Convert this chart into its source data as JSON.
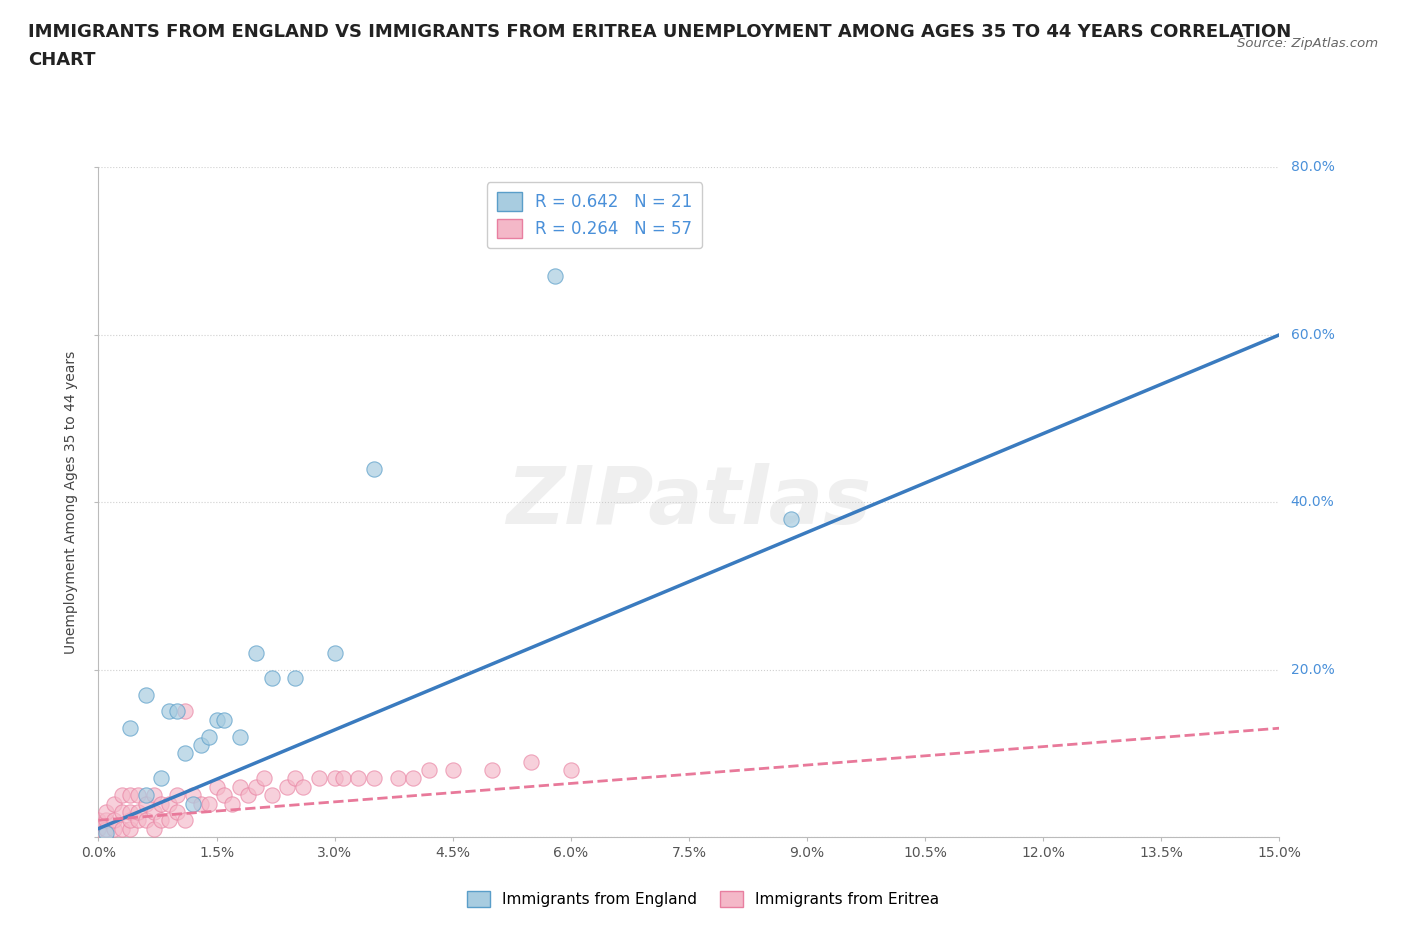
{
  "title": "IMMIGRANTS FROM ENGLAND VS IMMIGRANTS FROM ERITREA UNEMPLOYMENT AMONG AGES 35 TO 44 YEARS CORRELATION\nCHART",
  "source": "Source: ZipAtlas.com",
  "ylabel": "Unemployment Among Ages 35 to 44 years",
  "xlim": [
    0.0,
    0.15
  ],
  "ylim": [
    0.0,
    0.8
  ],
  "xticks": [
    0.0,
    0.015,
    0.03,
    0.045,
    0.06,
    0.075,
    0.09,
    0.105,
    0.12,
    0.135,
    0.15
  ],
  "yticks": [
    0.0,
    0.2,
    0.4,
    0.6,
    0.8
  ],
  "england_color": "#a8cce0",
  "eritrea_color": "#f4b8c8",
  "england_edge_color": "#5a9ec9",
  "eritrea_edge_color": "#e87fa0",
  "england_trend_color": "#3a7bbf",
  "eritrea_trend_color": "#e8799a",
  "england_R": 0.642,
  "england_N": 21,
  "eritrea_R": 0.264,
  "eritrea_N": 57,
  "england_x": [
    0.001,
    0.004,
    0.006,
    0.006,
    0.008,
    0.009,
    0.01,
    0.011,
    0.012,
    0.013,
    0.014,
    0.015,
    0.016,
    0.018,
    0.02,
    0.022,
    0.025,
    0.03,
    0.035,
    0.058,
    0.088
  ],
  "england_y": [
    0.005,
    0.13,
    0.17,
    0.05,
    0.07,
    0.15,
    0.15,
    0.1,
    0.04,
    0.11,
    0.12,
    0.14,
    0.14,
    0.12,
    0.22,
    0.19,
    0.19,
    0.22,
    0.44,
    0.67,
    0.38
  ],
  "eritrea_x": [
    0.0,
    0.0,
    0.001,
    0.001,
    0.001,
    0.002,
    0.002,
    0.002,
    0.003,
    0.003,
    0.003,
    0.004,
    0.004,
    0.004,
    0.004,
    0.005,
    0.005,
    0.005,
    0.006,
    0.006,
    0.007,
    0.007,
    0.007,
    0.008,
    0.008,
    0.009,
    0.009,
    0.01,
    0.01,
    0.011,
    0.011,
    0.012,
    0.013,
    0.014,
    0.015,
    0.016,
    0.017,
    0.018,
    0.019,
    0.02,
    0.021,
    0.022,
    0.024,
    0.025,
    0.026,
    0.028,
    0.03,
    0.031,
    0.033,
    0.035,
    0.038,
    0.04,
    0.042,
    0.045,
    0.05,
    0.055,
    0.06
  ],
  "eritrea_y": [
    0.01,
    0.02,
    0.01,
    0.02,
    0.03,
    0.01,
    0.02,
    0.04,
    0.01,
    0.03,
    0.05,
    0.01,
    0.02,
    0.03,
    0.05,
    0.02,
    0.03,
    0.05,
    0.02,
    0.04,
    0.01,
    0.03,
    0.05,
    0.02,
    0.04,
    0.02,
    0.04,
    0.03,
    0.05,
    0.02,
    0.15,
    0.05,
    0.04,
    0.04,
    0.06,
    0.05,
    0.04,
    0.06,
    0.05,
    0.06,
    0.07,
    0.05,
    0.06,
    0.07,
    0.06,
    0.07,
    0.07,
    0.07,
    0.07,
    0.07,
    0.07,
    0.07,
    0.08,
    0.08,
    0.08,
    0.09,
    0.08
  ],
  "england_trend_x": [
    0.0,
    0.15
  ],
  "england_trend_y": [
    0.01,
    0.6
  ],
  "eritrea_trend_x": [
    0.0,
    0.15
  ],
  "eritrea_trend_y": [
    0.02,
    0.13
  ],
  "watermark": "ZIPatlas",
  "background_color": "#ffffff",
  "grid_color": "#d0d0d0",
  "title_fontsize": 13,
  "tick_label_color_y": "#4a90d9",
  "tick_label_color_x": "#555555"
}
